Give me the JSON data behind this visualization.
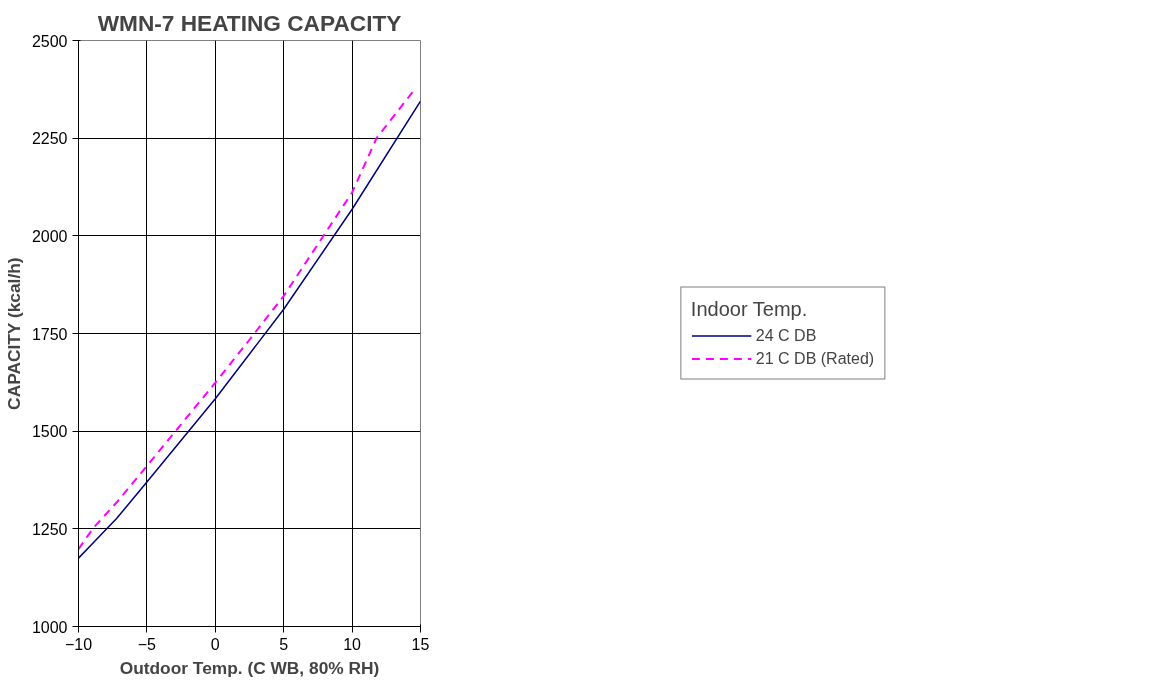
{
  "chart_data": {
    "type": "line",
    "title": "WMN-7 HEATING CAPACITY",
    "xlabel": "Outdoor Temp. (C WB, 80% RH)",
    "ylabel": "CAPACITY (kcal/h)",
    "legend_title": "Indoor Temp.",
    "xlim": [
      -10,
      15
    ],
    "xticks": [
      -10,
      -5,
      0,
      5,
      10,
      15
    ],
    "ylim": [
      1000,
      2500
    ],
    "yticks": [
      1000,
      1250,
      1500,
      1750,
      2000,
      2250,
      2500
    ],
    "grid": true,
    "legend": "right",
    "series": [
      {
        "name": "24 C DB",
        "color": "#000080",
        "line_style": "solid",
        "x": [
          -10,
          -8.9,
          -7.2,
          -5,
          0,
          5,
          10,
          15
        ],
        "values": [
          1175,
          1215,
          1277,
          1370,
          1583,
          1812,
          2068,
          2345
        ]
      },
      {
        "name": "21 C DB (Rated)",
        "color": "#ff00ff",
        "line_style": "dashed",
        "x": [
          -10,
          -8.9,
          -7.2,
          -5,
          0,
          2.5,
          5,
          10,
          11.8,
          14.6
        ],
        "values": [
          1198,
          1253,
          1318,
          1411,
          1624,
          1734,
          1846,
          2111,
          2251,
          2376
        ]
      }
    ]
  }
}
